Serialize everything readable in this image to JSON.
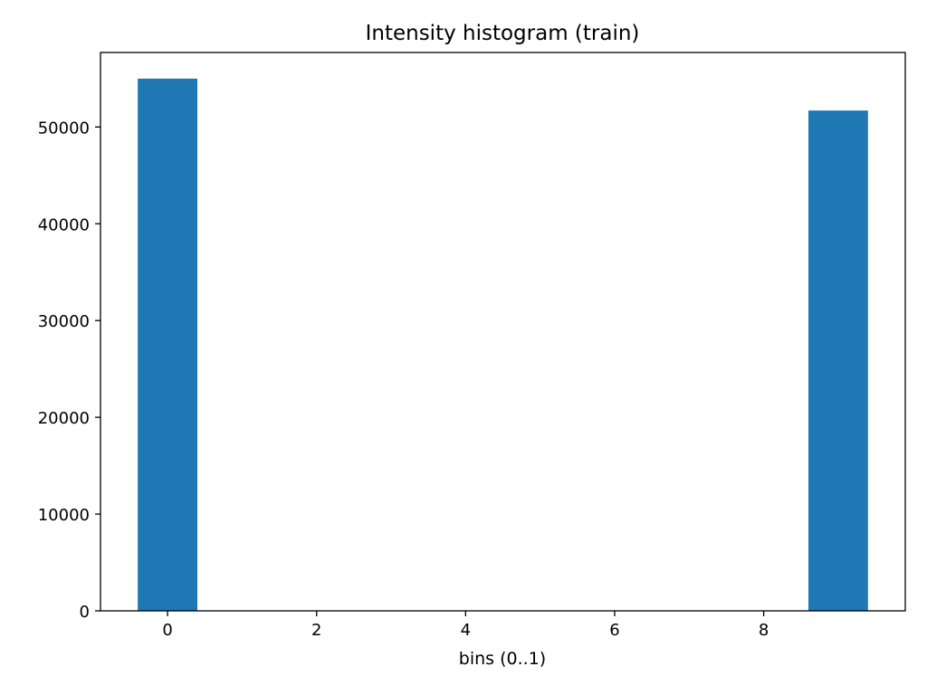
{
  "chart_data": {
    "type": "bar",
    "title": "Intensity histogram (train)",
    "xlabel": "bins (0..1)",
    "ylabel": "",
    "x": [
      0,
      1,
      2,
      3,
      4,
      5,
      6,
      7,
      8,
      9
    ],
    "values": [
      55000,
      0,
      0,
      0,
      0,
      0,
      0,
      0,
      0,
      51700
    ],
    "bar_width": 0.8,
    "xlim": [
      -0.9,
      9.9
    ],
    "ylim": [
      0,
      57700
    ],
    "x_ticks": [
      0,
      2,
      4,
      6,
      8
    ],
    "y_ticks": [
      0,
      10000,
      20000,
      30000,
      40000,
      50000
    ],
    "grid": false,
    "legend": "none",
    "bar_color": "#1f77b4"
  }
}
